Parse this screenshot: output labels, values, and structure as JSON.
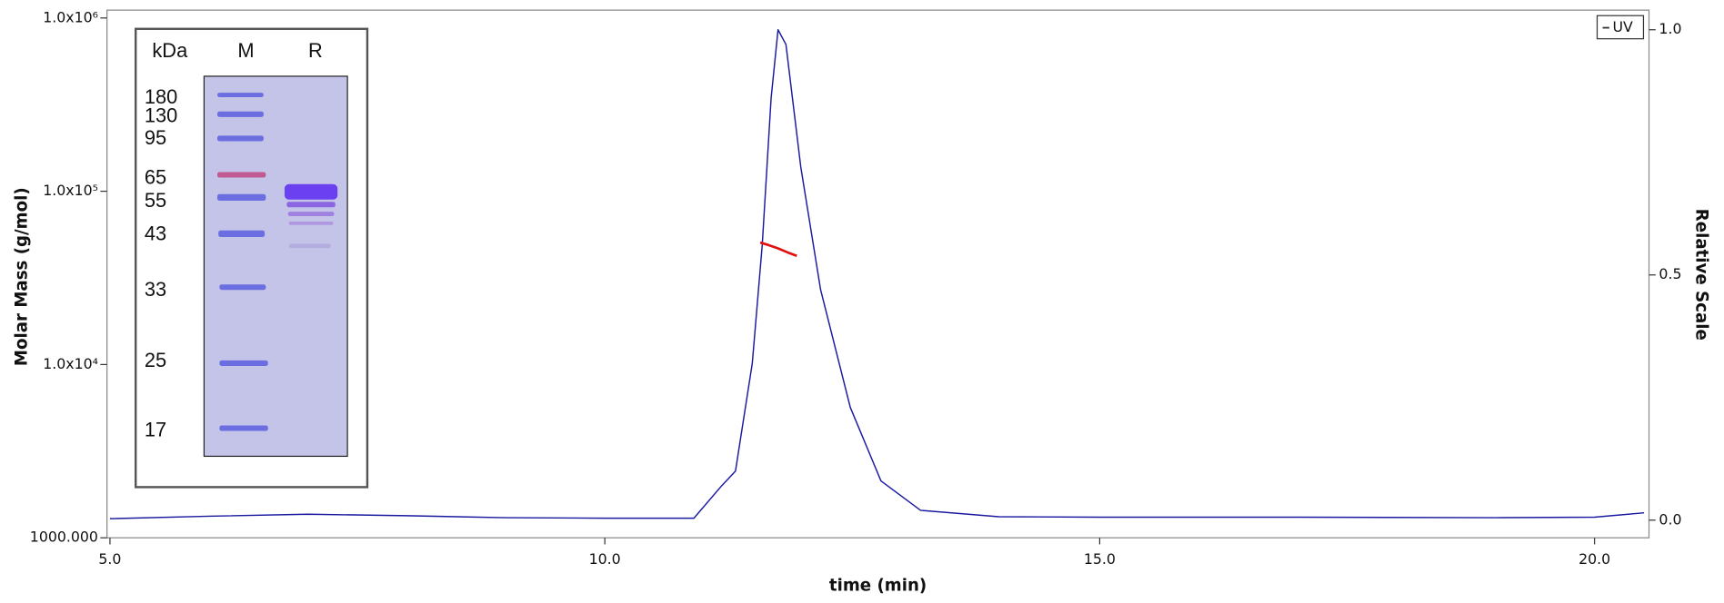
{
  "chart_data": {
    "type": "line",
    "xlabel": "time (min)",
    "ylabel": "Molar Mass (g/mol)",
    "y2label": "Relative Scale",
    "xlim": [
      4.97,
      20.55
    ],
    "xticks": [
      {
        "value": 5,
        "label": "5.0"
      },
      {
        "value": 10,
        "label": "10.0"
      },
      {
        "value": 15,
        "label": "15.0"
      },
      {
        "value": 20,
        "label": "20.0"
      }
    ],
    "ylim": [
      1000,
      1110000
    ],
    "log_y": true,
    "yticks": [
      {
        "value": 1000,
        "label": "1000.000"
      },
      {
        "value": 10000,
        "label": "1.0x10⁴"
      },
      {
        "value": 100000,
        "label": "1.0x10⁵"
      },
      {
        "value": 1000000,
        "label": "1.0x10⁶"
      }
    ],
    "y2lim": [
      -0.036,
      1.04
    ],
    "y2ticks": [
      {
        "value": 0,
        "label": "0.0"
      },
      {
        "value": 0.5,
        "label": "0.5"
      },
      {
        "value": 1,
        "label": "1.0"
      }
    ],
    "legend": "top-right",
    "series": [
      {
        "name": "UV",
        "color": "#1a1aa0",
        "axis": "y2",
        "x": [
          5.0,
          6.0,
          7.0,
          8.0,
          9.0,
          10.0,
          10.9,
          11.18,
          11.32,
          11.49,
          11.59,
          11.68,
          11.75,
          11.83,
          11.98,
          12.18,
          12.48,
          12.79,
          13.19,
          13.98,
          15.0,
          17.0,
          19.0,
          20.0,
          20.5
        ],
        "values": [
          0.003,
          0.008,
          0.012,
          0.009,
          0.005,
          0.004,
          0.004,
          0.07,
          0.1,
          0.32,
          0.56,
          0.86,
          1.0,
          0.97,
          0.72,
          0.47,
          0.23,
          0.08,
          0.02,
          0.007,
          0.006,
          0.006,
          0.005,
          0.006,
          0.015
        ]
      },
      {
        "color": "#e01010",
        "x": [
          11.57,
          11.65,
          11.75,
          11.85,
          11.94
        ],
        "values": [
          50600,
          49000,
          46800,
          44300,
          42400
        ]
      }
    ],
    "inset": {
      "headers": [
        "kDa",
        "M",
        "R"
      ],
      "markers": [
        "180",
        "130",
        "95",
        "65",
        "55",
        "43",
        "33",
        "25",
        "17"
      ]
    }
  }
}
